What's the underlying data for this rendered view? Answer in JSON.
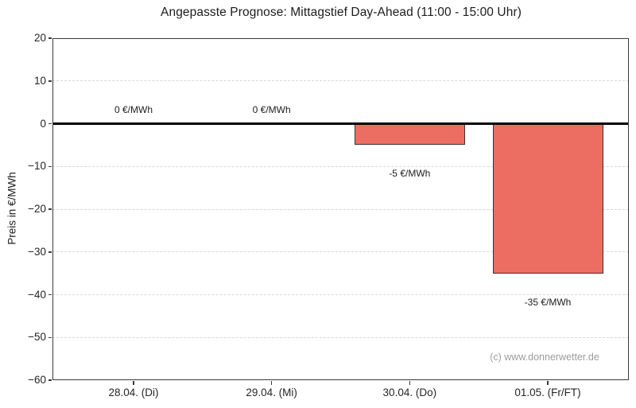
{
  "watermark": "(c) www.donnerwetter.de",
  "colors": {
    "bar_fill": "#ec6e62",
    "bar_edge": "#3c332f",
    "grid": "#d7d7d7",
    "spine": "#3a3a3a",
    "zero_line": "#000000",
    "text": "#1c1c1c",
    "watermark": "#9c9c9c",
    "background": "#ffffff"
  },
  "chart_data": {
    "type": "bar",
    "title": "Angepasste Prognose: Mittagstief Day-Ahead (11:00 - 15:00 Uhr)",
    "xlabel": "",
    "ylabel": "Preis in €/MWh",
    "categories": [
      "28.04. (Di)",
      "29.04. (Mi)",
      "30.04. (Do)",
      "01.05. (Fr/FT)"
    ],
    "values": [
      0,
      0,
      -5,
      -35
    ],
    "bar_labels": [
      "0 €/MWh",
      "0 €/MWh",
      "-5 €/MWh",
      "-35 €/MWh"
    ],
    "ylim": [
      -60,
      20
    ],
    "yticks": [
      20,
      10,
      0,
      -10,
      -20,
      -30,
      -40,
      -50,
      -60
    ],
    "grid": "horizontal-dashed",
    "zero_line": true,
    "legend": null
  }
}
